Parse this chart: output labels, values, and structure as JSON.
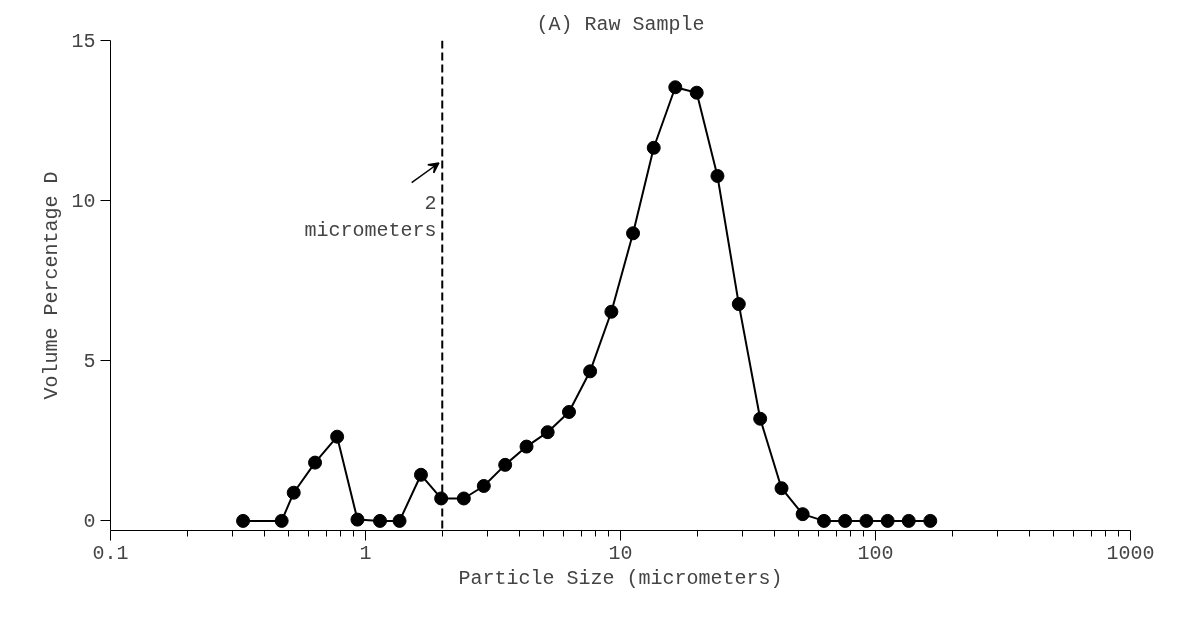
{
  "chart_data": {
    "type": "line",
    "title": "(A) Raw Sample",
    "xlabel": "Particle Size (micrometers)",
    "ylabel": "Volume Percentage D",
    "log": "x",
    "xlim": [
      0.1,
      1000
    ],
    "xticks": [
      0.1,
      1,
      10,
      100,
      1000
    ],
    "ylim": [
      -0.3,
      15
    ],
    "yticks": [
      0,
      5,
      10,
      15
    ],
    "grid": false,
    "marker": "circle",
    "line_style": "solid",
    "series": [
      {
        "color": "#000000",
        "x": [
          0.331,
          0.469,
          0.523,
          0.634,
          0.774,
          0.93,
          1.14,
          1.36,
          1.65,
          1.98,
          2.43,
          2.91,
          3.53,
          4.28,
          5.18,
          6.28,
          7.6,
          9.21,
          11.2,
          13.5,
          16.4,
          19.9,
          24.0,
          29.1,
          35.3,
          42.8,
          51.8,
          62.8,
          76.0,
          92.1,
          111.6,
          135,
          164
        ],
        "values": [
          0,
          0,
          0.88,
          1.82,
          2.63,
          0.04,
          0,
          0,
          1.44,
          0.7,
          0.7,
          1.09,
          1.75,
          2.32,
          2.77,
          3.4,
          4.67,
          6.53,
          8.98,
          11.65,
          13.54,
          13.37,
          10.77,
          6.77,
          3.19,
          1.02,
          0.21,
          0,
          0,
          0,
          0,
          0,
          0
        ]
      }
    ],
    "ref_lines": [
      {
        "axis": "x",
        "value": 2,
        "label": "2\nmicrometers",
        "color": "#000000",
        "line_style": "dashed"
      }
    ]
  }
}
